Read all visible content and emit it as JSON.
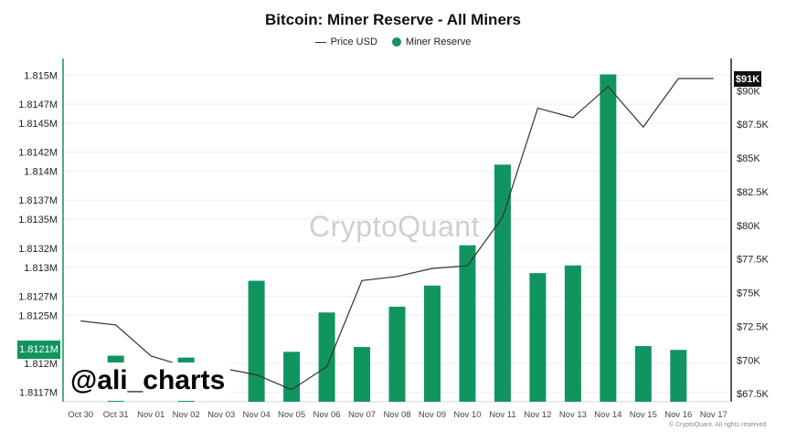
{
  "chart_data": {
    "type": "bar",
    "title": "Bitcoin: Miner Reserve - All Miners",
    "categories": [
      "Oct 30",
      "Oct 31",
      "Nov 01",
      "Nov 02",
      "Nov 03",
      "Nov 04",
      "Nov 05",
      "Nov 06",
      "Nov 07",
      "Nov 08",
      "Nov 09",
      "Nov 10",
      "Nov 11",
      "Nov 12",
      "Nov 13",
      "Nov 14",
      "Nov 15",
      "Nov 16",
      "Nov 17"
    ],
    "series": [
      {
        "name": "Miner Reserve",
        "axis": "left",
        "type": "bar",
        "color": "#11955f",
        "values": [
          null,
          1.81208,
          null,
          1.81206,
          null,
          1.81286,
          1.81212,
          1.81253,
          1.81217,
          1.81259,
          1.81281,
          1.81323,
          1.81407,
          1.81294,
          1.81302,
          1.81501,
          1.81218,
          1.81214,
          null
        ]
      },
      {
        "name": "Price USD",
        "axis": "right",
        "type": "line",
        "color": "#333333",
        "values": [
          72900,
          72600,
          70300,
          69500,
          69400,
          68900,
          67800,
          69500,
          75900,
          76200,
          76800,
          77000,
          80600,
          88700,
          88000,
          90300,
          87300,
          90900,
          90900
        ]
      }
    ],
    "y_left": {
      "ylim": [
        1.8116,
        1.8151
      ],
      "ticks": [
        1.8117,
        1.812,
        1.8125,
        1.8127,
        1.813,
        1.8132,
        1.8135,
        1.8137,
        1.814,
        1.8142,
        1.8145,
        1.8147,
        1.815
      ],
      "tick_labels": [
        "1.8117M",
        "1.812M",
        "1.8125M",
        "1.8127M",
        "1.813M",
        "1.8132M",
        "1.8135M",
        "1.8137M",
        "1.814M",
        "1.8142M",
        "1.8145M",
        "1.8147M",
        "1.815M"
      ],
      "current_label": "1.8121M",
      "current_value": 1.81214
    },
    "y_right": {
      "ylim": [
        66900,
        91850
      ],
      "ticks": [
        67500,
        70000,
        72500,
        75000,
        77500,
        80000,
        82500,
        85000,
        87500,
        90000
      ],
      "tick_labels": [
        "$67.5K",
        "$70K",
        "$72.5K",
        "$75K",
        "$77.5K",
        "$80K",
        "$82.5K",
        "$85K",
        "$87.5K",
        "$90K"
      ],
      "current_label": "$91K",
      "current_value": 90900
    },
    "legend": {
      "placement": "top-center",
      "items": [
        "Price USD",
        "Miner Reserve"
      ]
    },
    "grid": {
      "horizontal": true,
      "vertical": false
    }
  },
  "watermark": "CryptoQuant",
  "handle": "@ali_charts",
  "copyright": "© CryptoQuant. All rights reserved"
}
